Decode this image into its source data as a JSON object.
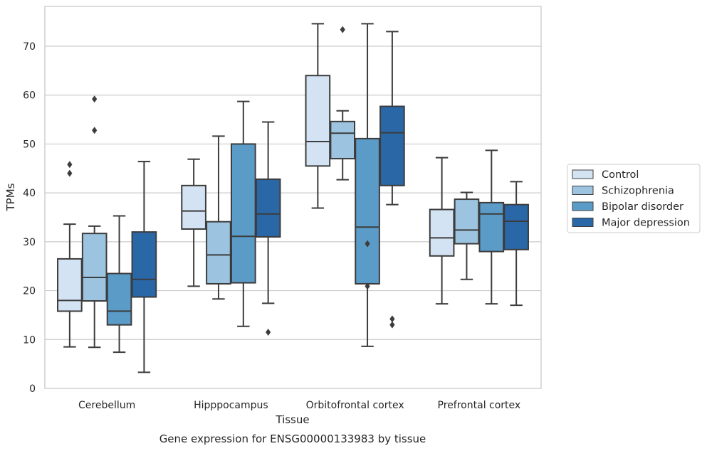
{
  "chart_data": {
    "type": "box",
    "xlabel": "Tissue",
    "ylabel": "TPMs",
    "caption": "Gene expression for ENSG00000133983 by tissue",
    "ylim": [
      0,
      78
    ],
    "yticks": [
      0,
      10,
      20,
      30,
      40,
      50,
      60,
      70
    ],
    "grid": "horizontal",
    "legend_position": "right",
    "categories": [
      "Cerebellum",
      "Hipppocampus",
      "Orbitofrontal cortex",
      "Prefrontal cortex"
    ],
    "series": [
      {
        "name": "Control",
        "color": "#d4e3f3",
        "boxes": [
          {
            "whisker_low": 8.5,
            "q1": 15.8,
            "median": 18.0,
            "q3": 26.5,
            "whisker_high": 33.6,
            "outliers": [
              44.0,
              45.8
            ]
          },
          {
            "whisker_low": 20.9,
            "q1": 32.6,
            "median": 36.3,
            "q3": 41.5,
            "whisker_high": 46.9,
            "outliers": []
          },
          {
            "whisker_low": 36.9,
            "q1": 45.5,
            "median": 50.5,
            "q3": 64.0,
            "whisker_high": 74.6,
            "outliers": []
          },
          {
            "whisker_low": 17.3,
            "q1": 27.1,
            "median": 30.8,
            "q3": 36.6,
            "whisker_high": 47.2,
            "outliers": []
          }
        ]
      },
      {
        "name": "Schizophrenia",
        "color": "#9cc4e0",
        "boxes": [
          {
            "whisker_low": 8.4,
            "q1": 17.9,
            "median": 22.7,
            "q3": 31.7,
            "whisker_high": 33.2,
            "outliers": [
              52.8,
              59.2
            ]
          },
          {
            "whisker_low": 18.3,
            "q1": 21.4,
            "median": 27.3,
            "q3": 34.1,
            "whisker_high": 51.6,
            "outliers": []
          },
          {
            "whisker_low": 42.7,
            "q1": 47.0,
            "median": 52.2,
            "q3": 54.6,
            "whisker_high": 56.8,
            "outliers": [
              73.4
            ]
          },
          {
            "whisker_low": 22.3,
            "q1": 29.6,
            "median": 32.4,
            "q3": 38.7,
            "whisker_high": 40.1,
            "outliers": []
          }
        ]
      },
      {
        "name": "Bipolar disorder",
        "color": "#5b9bc8",
        "boxes": [
          {
            "whisker_low": 7.4,
            "q1": 13.0,
            "median": 15.8,
            "q3": 23.5,
            "whisker_high": 35.3,
            "outliers": []
          },
          {
            "whisker_low": 12.7,
            "q1": 21.6,
            "median": 31.1,
            "q3": 50.0,
            "whisker_high": 58.7,
            "outliers": []
          },
          {
            "whisker_low": 8.6,
            "q1": 21.4,
            "median": 33.0,
            "q3": 51.1,
            "whisker_high": 74.6,
            "outliers": [
              20.9,
              29.6
            ]
          },
          {
            "whisker_low": 17.3,
            "q1": 28.0,
            "median": 35.7,
            "q3": 38.0,
            "whisker_high": 48.7,
            "outliers": []
          }
        ]
      },
      {
        "name": "Major depression",
        "color": "#2a67a7",
        "boxes": [
          {
            "whisker_low": 3.3,
            "q1": 18.7,
            "median": 22.3,
            "q3": 32.0,
            "whisker_high": 46.4,
            "outliers": []
          },
          {
            "whisker_low": 17.4,
            "q1": 31.0,
            "median": 35.7,
            "q3": 42.8,
            "whisker_high": 54.5,
            "outliers": [
              11.5
            ]
          },
          {
            "whisker_low": 37.6,
            "q1": 41.5,
            "median": 52.3,
            "q3": 57.7,
            "whisker_high": 73.0,
            "outliers": [
              13.0,
              14.2
            ]
          },
          {
            "whisker_low": 17.0,
            "q1": 28.4,
            "median": 34.2,
            "q3": 37.6,
            "whisker_high": 42.3,
            "outliers": []
          }
        ]
      }
    ]
  }
}
